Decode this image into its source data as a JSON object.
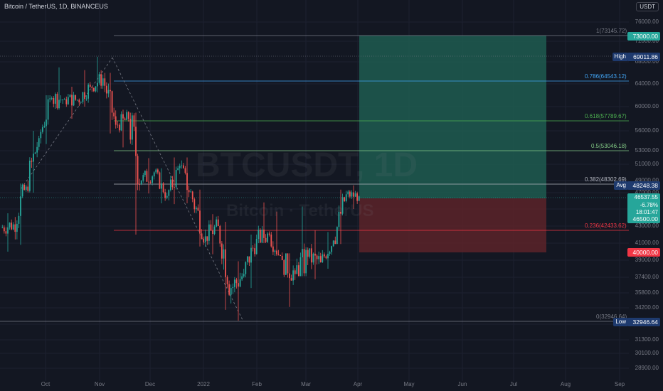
{
  "header": {
    "title": "Bitcoin / TetherUS, 1D, BINANCEUS",
    "currency": "USDT"
  },
  "watermark": {
    "symbol": "BTCUSDT, 1D",
    "name": "Bitcoin · TetherUS"
  },
  "y_axis": {
    "labels": [
      "76000.00",
      "72000.00",
      "68000.00",
      "64000.00",
      "60000.00",
      "56000.00",
      "53000.00",
      "51000.00",
      "49000.00",
      "47000.00",
      "45000.00",
      "43000.00",
      "41000.00",
      "39000.00",
      "37400.00",
      "35800.00",
      "34200.00",
      "32600.00",
      "31300.00",
      "30100.00",
      "28900.00"
    ]
  },
  "x_axis": {
    "labels": [
      "Oct",
      "Nov",
      "Dec",
      "2022",
      "Feb",
      "Mar",
      "Apr",
      "May",
      "Jun",
      "Jul",
      "Aug",
      "Sep"
    ]
  },
  "fib_levels": [
    {
      "label": "1(73145.72)",
      "color": "#787b86"
    },
    {
      "label": "0.786(64543.12)",
      "color": "#42a5f5"
    },
    {
      "label": "0.618(57789.67)",
      "color": "#4caf50"
    },
    {
      "label": "0.5(53046.18)",
      "color": "#81c784"
    },
    {
      "label": "0.382(48302.69)",
      "color": "#b2b5be"
    },
    {
      "label": "0.236(42433.62)",
      "color": "#f23645"
    },
    {
      "label": "0(32946.64)",
      "color": "#787b86"
    }
  ],
  "price_tags": {
    "target": "73000.00",
    "high_label": "High",
    "high": "69011.86",
    "avg_label": "Avg",
    "avg": "48248.38",
    "current_price": "46537.55",
    "current_change": "-6.78%",
    "current_timer": "18:01:47",
    "entry": "46500.00",
    "stop": "40000.00",
    "low_label": "Low",
    "low": "32946.64"
  },
  "colors": {
    "background": "#131722",
    "up": "#26a69a",
    "down": "#ef5350",
    "target_zone": "#1e5c50",
    "stop_zone": "#5c2329",
    "target_tag": "#26a69a",
    "stop_tag": "#f23645",
    "high_low_tag": "#1e3a6e"
  },
  "chart_data": {
    "type": "candlestick",
    "symbol": "BTCUSDT",
    "interval": "1D",
    "ylim": [
      28000,
      78000
    ],
    "ohlc_weekly_approx": [
      {
        "x": "Sep 20",
        "open": 42800,
        "high": 44500,
        "low": 40000,
        "close": 43200
      },
      {
        "x": "Sep 27",
        "open": 43200,
        "high": 48500,
        "low": 40800,
        "close": 48000
      },
      {
        "x": "Oct 04",
        "open": 48000,
        "high": 56000,
        "low": 47000,
        "close": 54900
      },
      {
        "x": "Oct 11",
        "open": 54900,
        "high": 62000,
        "low": 54000,
        "close": 61500
      },
      {
        "x": "Oct 18",
        "open": 61500,
        "high": 67000,
        "low": 59500,
        "close": 61300
      },
      {
        "x": "Oct 25",
        "open": 61300,
        "high": 63500,
        "low": 58000,
        "close": 61200
      },
      {
        "x": "Nov 01",
        "open": 61200,
        "high": 66500,
        "low": 60000,
        "close": 63500
      },
      {
        "x": "Nov 08",
        "open": 63500,
        "high": 69011,
        "low": 62500,
        "close": 65000
      },
      {
        "x": "Nov 15",
        "open": 65000,
        "high": 66000,
        "low": 55600,
        "close": 57000
      },
      {
        "x": "Nov 22",
        "open": 57000,
        "high": 59500,
        "low": 53500,
        "close": 58000
      },
      {
        "x": "Nov 29",
        "open": 58000,
        "high": 59000,
        "low": 42000,
        "close": 49000
      },
      {
        "x": "Dec 06",
        "open": 49000,
        "high": 51900,
        "low": 46900,
        "close": 50000
      },
      {
        "x": "Dec 13",
        "open": 50000,
        "high": 50500,
        "low": 45700,
        "close": 46600
      },
      {
        "x": "Dec 20",
        "open": 46600,
        "high": 52000,
        "low": 45600,
        "close": 50800
      },
      {
        "x": "Dec 27",
        "open": 50800,
        "high": 52000,
        "low": 45700,
        "close": 46200
      },
      {
        "x": "Jan 03",
        "open": 46200,
        "high": 47500,
        "low": 40600,
        "close": 41800
      },
      {
        "x": "Jan 10",
        "open": 41800,
        "high": 44400,
        "low": 39700,
        "close": 43000
      },
      {
        "x": "Jan 17",
        "open": 43000,
        "high": 43500,
        "low": 34000,
        "close": 36300
      },
      {
        "x": "Jan 24",
        "open": 36300,
        "high": 38900,
        "low": 32946,
        "close": 37700
      },
      {
        "x": "Jan 31",
        "open": 37700,
        "high": 42000,
        "low": 36300,
        "close": 41500
      },
      {
        "x": "Feb 07",
        "open": 41500,
        "high": 45800,
        "low": 41000,
        "close": 42000
      },
      {
        "x": "Feb 14",
        "open": 42000,
        "high": 44700,
        "low": 39500,
        "close": 39000
      },
      {
        "x": "Feb 21",
        "open": 39000,
        "high": 39800,
        "low": 34300,
        "close": 37700
      },
      {
        "x": "Feb 28",
        "open": 37700,
        "high": 45300,
        "low": 37500,
        "close": 39400
      },
      {
        "x": "Mar 07",
        "open": 39400,
        "high": 42500,
        "low": 37200,
        "close": 38800
      },
      {
        "x": "Mar 14",
        "open": 38800,
        "high": 42300,
        "low": 38200,
        "close": 41300
      },
      {
        "x": "Mar 21",
        "open": 41300,
        "high": 47500,
        "low": 40900,
        "close": 46800
      },
      {
        "x": "Mar 28",
        "open": 46800,
        "high": 48200,
        "low": 45000,
        "close": 46537
      }
    ]
  }
}
